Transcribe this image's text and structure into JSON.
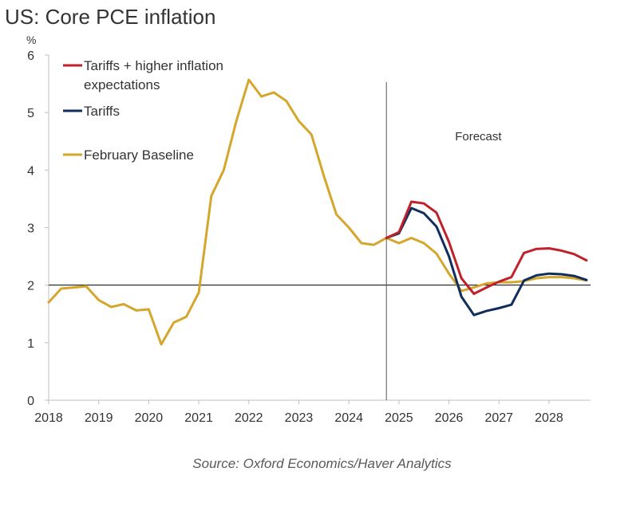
{
  "title": "US: Core PCE inflation",
  "unit": "%",
  "source": "Source: Oxford Economics/Haver Analytics",
  "chart_data": {
    "type": "line",
    "title": "US: Core PCE inflation",
    "xlabel": "",
    "ylabel": "%",
    "xlim": [
      2018.0,
      2028.83
    ],
    "ylim": [
      0,
      6
    ],
    "yticks": [
      0,
      1,
      2,
      3,
      4,
      5,
      6
    ],
    "xticks": [
      "2018",
      "2019",
      "2020",
      "2021",
      "2022",
      "2023",
      "2024",
      "2025",
      "2026",
      "2027",
      "2028"
    ],
    "reference_line": 2,
    "forecast_start": 2024.75,
    "forecast_label": "Forecast",
    "grid": false,
    "legend_position": "top-left",
    "series": [
      {
        "name": "February Baseline",
        "color": "#D4A72C",
        "x": [
          2018.0,
          2018.25,
          2018.5,
          2018.75,
          2019.0,
          2019.25,
          2019.5,
          2019.75,
          2020.0,
          2020.25,
          2020.5,
          2020.75,
          2021.0,
          2021.25,
          2021.5,
          2021.75,
          2022.0,
          2022.25,
          2022.5,
          2022.75,
          2023.0,
          2023.25,
          2023.5,
          2023.75,
          2024.0,
          2024.25,
          2024.5,
          2024.75,
          2025.0,
          2025.25,
          2025.5,
          2025.75,
          2026.0,
          2026.25,
          2026.5,
          2026.75,
          2027.0,
          2027.25,
          2027.5,
          2027.75,
          2028.0,
          2028.25,
          2028.5,
          2028.75
        ],
        "values": [
          1.7,
          1.94,
          1.96,
          1.98,
          1.74,
          1.62,
          1.67,
          1.56,
          1.58,
          0.97,
          1.35,
          1.45,
          1.87,
          3.55,
          4.0,
          4.85,
          5.57,
          5.28,
          5.35,
          5.2,
          4.85,
          4.62,
          3.9,
          3.23,
          3.0,
          2.73,
          2.7,
          2.82,
          2.73,
          2.82,
          2.73,
          2.55,
          2.2,
          1.9,
          1.96,
          2.03,
          2.05,
          2.05,
          2.07,
          2.12,
          2.14,
          2.14,
          2.12,
          2.08
        ]
      },
      {
        "name": "Tariffs",
        "color": "#0F2E5C",
        "x": [
          2024.75,
          2025.0,
          2025.25,
          2025.5,
          2025.75,
          2026.0,
          2026.25,
          2026.5,
          2026.75,
          2027.0,
          2027.25,
          2027.5,
          2027.75,
          2028.0,
          2028.25,
          2028.5,
          2028.75
        ],
        "values": [
          2.82,
          2.9,
          3.34,
          3.25,
          3.02,
          2.5,
          1.8,
          1.48,
          1.55,
          1.6,
          1.66,
          2.08,
          2.17,
          2.2,
          2.19,
          2.16,
          2.09
        ]
      },
      {
        "name": "Tariffs + higher inflation expectations",
        "color": "#C0222B",
        "x": [
          2024.75,
          2025.0,
          2025.25,
          2025.5,
          2025.75,
          2026.0,
          2026.25,
          2026.5,
          2026.75,
          2027.0,
          2027.25,
          2027.5,
          2027.75,
          2028.0,
          2028.25,
          2028.5,
          2028.75
        ],
        "values": [
          2.82,
          2.92,
          3.45,
          3.42,
          3.26,
          2.75,
          2.12,
          1.85,
          1.96,
          2.06,
          2.14,
          2.56,
          2.63,
          2.64,
          2.6,
          2.54,
          2.43
        ]
      }
    ],
    "legend": [
      {
        "label_lines": [
          "Tariffs + higher inflation",
          "expectations"
        ],
        "color": "#C0222B"
      },
      {
        "label_lines": [
          "Tariffs"
        ],
        "color": "#0F2E5C"
      },
      {
        "label_lines": [
          "February Baseline"
        ],
        "color": "#D4A72C"
      }
    ]
  }
}
